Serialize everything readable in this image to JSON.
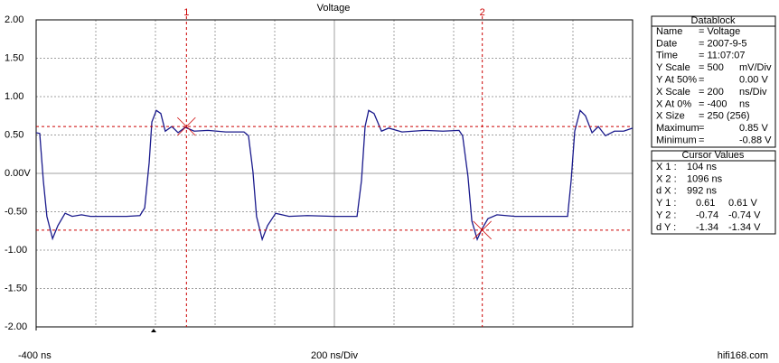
{
  "chart_data": {
    "type": "line",
    "title": "Voltage",
    "xlim": [
      -400,
      1600
    ],
    "ylim": [
      -2,
      2
    ],
    "xticks": [
      {
        "value": -400,
        "label": "-400 ns"
      }
    ],
    "xgrid": [
      -200,
      0,
      200,
      400,
      600,
      800,
      1000,
      1200,
      1400
    ],
    "yticks": [
      {
        "value": 2,
        "label": "2.00"
      },
      {
        "value": 1.5,
        "label": "1.50"
      },
      {
        "value": 1,
        "label": "1.00"
      },
      {
        "value": 0.5,
        "label": "0.50"
      },
      {
        "value": 0,
        "label": "0.00V"
      },
      {
        "value": -0.5,
        "label": "-0.50"
      },
      {
        "value": -1,
        "label": "-1.00"
      },
      {
        "value": -1.5,
        "label": "-1.50"
      },
      {
        "value": -2,
        "label": "-2.00"
      }
    ],
    "grid": true,
    "x_scale_label": "200 ns/Div",
    "watermark": "hifi168.com",
    "x": [
      -400,
      -388,
      -376,
      -364,
      -345,
      -327,
      -303,
      -279,
      -248,
      -218,
      -158,
      -97,
      -52,
      -36,
      -21,
      -12,
      3,
      18,
      33,
      55,
      76,
      100,
      130,
      176,
      236,
      297,
      312,
      327,
      339,
      358,
      376,
      403,
      448,
      509,
      600,
      676,
      691,
      703,
      715,
      733,
      758,
      782,
      827,
      903,
      964,
      1018,
      1030,
      1048,
      1061,
      1079,
      1094,
      1115,
      1145,
      1206,
      1297,
      1382,
      1394,
      1406,
      1424,
      1442,
      1464,
      1485,
      1509,
      1539,
      1570,
      1600
    ],
    "series": [
      {
        "name": "Voltage",
        "color": "#1a1a8c",
        "values": [
          0.53,
          0.52,
          -0.09,
          -0.56,
          -0.85,
          -0.68,
          -0.52,
          -0.56,
          -0.54,
          -0.56,
          -0.56,
          -0.56,
          -0.55,
          -0.45,
          0.14,
          0.67,
          0.82,
          0.78,
          0.55,
          0.61,
          0.53,
          0.6,
          0.55,
          0.56,
          0.54,
          0.54,
          0.49,
          0.02,
          -0.56,
          -0.86,
          -0.68,
          -0.52,
          -0.56,
          -0.55,
          -0.56,
          -0.56,
          -0.09,
          0.61,
          0.82,
          0.78,
          0.55,
          0.59,
          0.54,
          0.56,
          0.55,
          0.56,
          0.49,
          -0.04,
          -0.62,
          -0.86,
          -0.73,
          -0.59,
          -0.54,
          -0.56,
          -0.56,
          -0.56,
          -0.09,
          0.55,
          0.82,
          0.75,
          0.53,
          0.61,
          0.49,
          0.55,
          0.55,
          0.59
        ]
      }
    ],
    "cursors": {
      "color": "#cc0000",
      "labels": [
        "1",
        "2"
      ],
      "x": [
        104,
        1096
      ],
      "y": [
        0.61,
        -0.74
      ]
    }
  },
  "datablock": {
    "title": "Datablock",
    "rows": [
      [
        "Name",
        "= Voltage"
      ],
      [
        "Date",
        "= 2007-9-5"
      ],
      [
        "Time",
        "= 11:07:07"
      ],
      [
        "Y Scale",
        "= 500",
        "mV/Div"
      ],
      [
        "Y At 50%",
        "=",
        "0.00 V"
      ],
      [
        "X Scale",
        "= 200",
        "ns/Div"
      ],
      [
        "X At 0%",
        "= -400",
        "ns"
      ],
      [
        "X Size",
        "= 250 (256)"
      ],
      [
        "Maximum",
        "=",
        "0.85 V"
      ],
      [
        "Minimum",
        "=",
        "-0.88 V"
      ]
    ]
  },
  "cursor_values": {
    "title": "Cursor Values",
    "rows": [
      [
        "X 1 :",
        "104 ns"
      ],
      [
        "X 2 :",
        "1096 ns"
      ],
      [
        "d X :",
        "992 ns"
      ],
      [
        "Y 1 :",
        "0.61",
        "0.61 V"
      ],
      [
        "Y 2 :",
        "-0.74",
        "-0.74 V"
      ],
      [
        "d Y :",
        "-1.34",
        "-1.34 V"
      ]
    ]
  }
}
